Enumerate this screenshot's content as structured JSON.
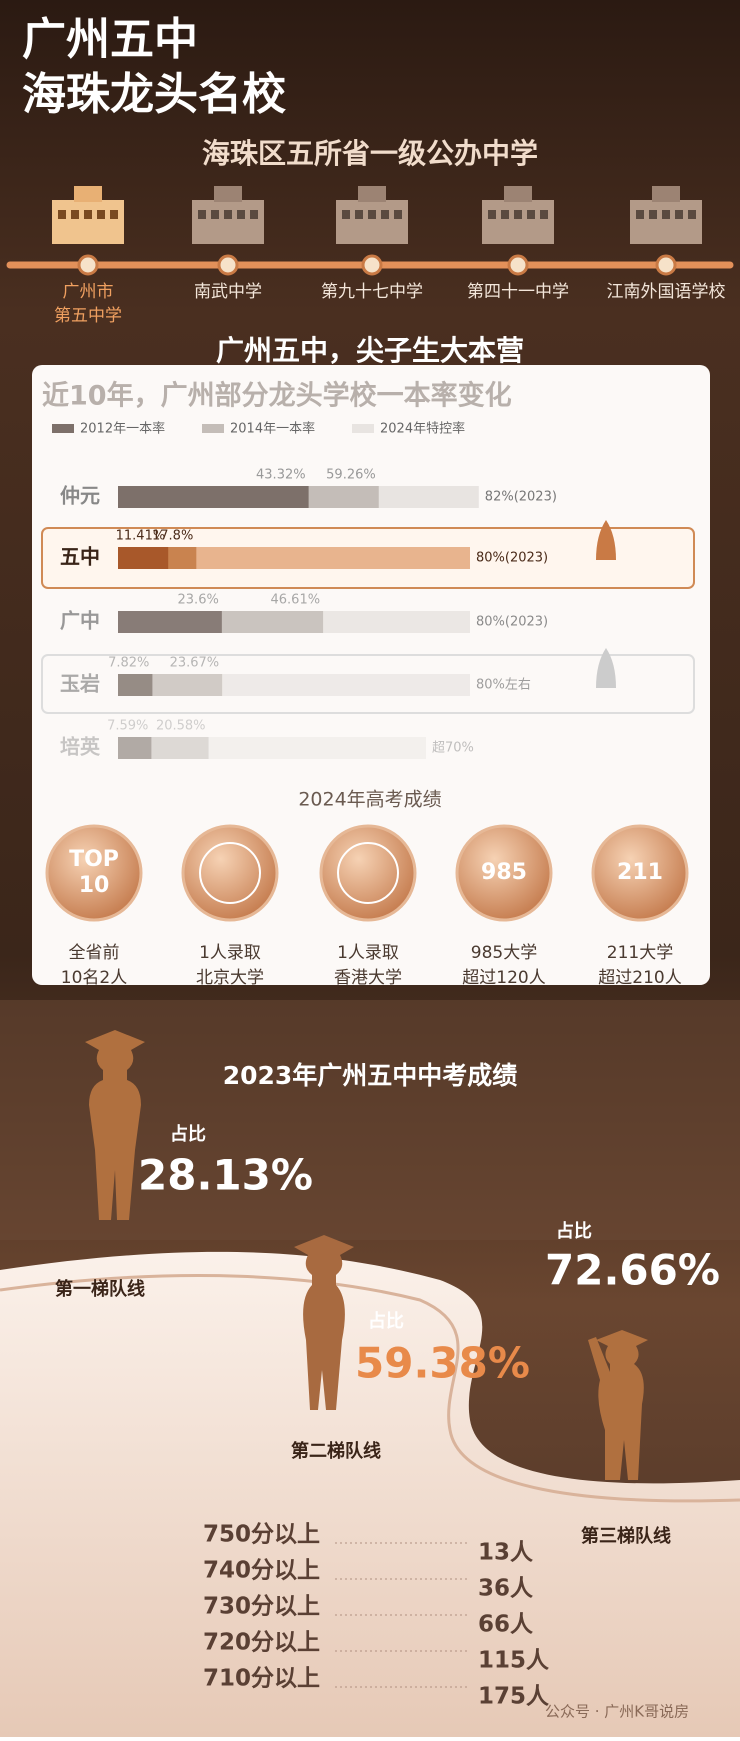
{
  "header": {
    "title_lines": [
      "广州五中",
      "海珠龙头名校"
    ],
    "subtitle": "海珠区五所省一级公办中学"
  },
  "schools": [
    [
      "广州市",
      "第五中学"
    ],
    [
      "南武中学"
    ],
    [
      "第九十七中学"
    ],
    [
      "第四十一中学"
    ],
    [
      "江南外国语学校"
    ]
  ],
  "section_title": "广州五中，尖子生大本营",
  "chart_data": {
    "type": "bar",
    "orientation": "horizontal",
    "title": "近10年，广州部分龙头学校一本率变化",
    "categories": [
      "仲元",
      "五中",
      "广中",
      "玉岩",
      "培英"
    ],
    "series": [
      {
        "name": "2012年一本率",
        "color": "#7d706a",
        "values": [
          43.32,
          11.41,
          23.6,
          7.82,
          7.59
        ],
        "value_labels": [
          "43.32%",
          "11.41%",
          "23.6%",
          "7.82%",
          "7.59%"
        ]
      },
      {
        "name": "2014年一本率",
        "color": "#c4bdb8",
        "values": [
          59.26,
          17.8,
          46.61,
          23.67,
          20.58
        ],
        "value_labels": [
          "59.26%",
          "17.8%",
          "46.61%",
          "23.67%",
          "20.58%"
        ]
      },
      {
        "name": "2024年特控率",
        "color": "#e8e4e1",
        "values": [
          82,
          80,
          80,
          80,
          70
        ],
        "value_labels": [
          "82%(2023)",
          "80%(2023)",
          "80%(2023)",
          "80%左右",
          "超70%"
        ]
      }
    ],
    "xlim": [
      0,
      100
    ]
  },
  "gaokao": {
    "title": "2024年高考成绩",
    "items": [
      {
        "badge_lines": [
          "TOP",
          "10"
        ],
        "caption_lines": [
          "全省前",
          "10名2人"
        ]
      },
      {
        "caption_lines": [
          "1人录取",
          "北京大学"
        ]
      },
      {
        "caption_lines": [
          "1人录取",
          "香港大学"
        ]
      },
      {
        "badge_lines": [
          "985"
        ],
        "caption_lines": [
          "985大学",
          "超过120人"
        ]
      },
      {
        "badge_lines": [
          "211"
        ],
        "caption_lines": [
          "211大学",
          "超过210人"
        ]
      }
    ]
  },
  "zhongkao": {
    "title": "2023年广州五中中考成绩",
    "tiers": [
      {
        "label": "占比",
        "percent": "28.13%",
        "line": "第一梯队线"
      },
      {
        "label": "占比",
        "percent": "59.38%",
        "line": "第二梯队线"
      },
      {
        "label": "占比",
        "percent": "72.66%",
        "line": "第三梯队线"
      }
    ],
    "scores": [
      {
        "score": "750分以上",
        "count": "13人"
      },
      {
        "score": "740分以上",
        "count": "36人"
      },
      {
        "score": "730分以上",
        "count": "66人"
      },
      {
        "score": "720分以上",
        "count": "115人"
      },
      {
        "score": "710分以上",
        "count": "175人"
      }
    ]
  },
  "watermark": "公众号 · 广州K哥说房"
}
